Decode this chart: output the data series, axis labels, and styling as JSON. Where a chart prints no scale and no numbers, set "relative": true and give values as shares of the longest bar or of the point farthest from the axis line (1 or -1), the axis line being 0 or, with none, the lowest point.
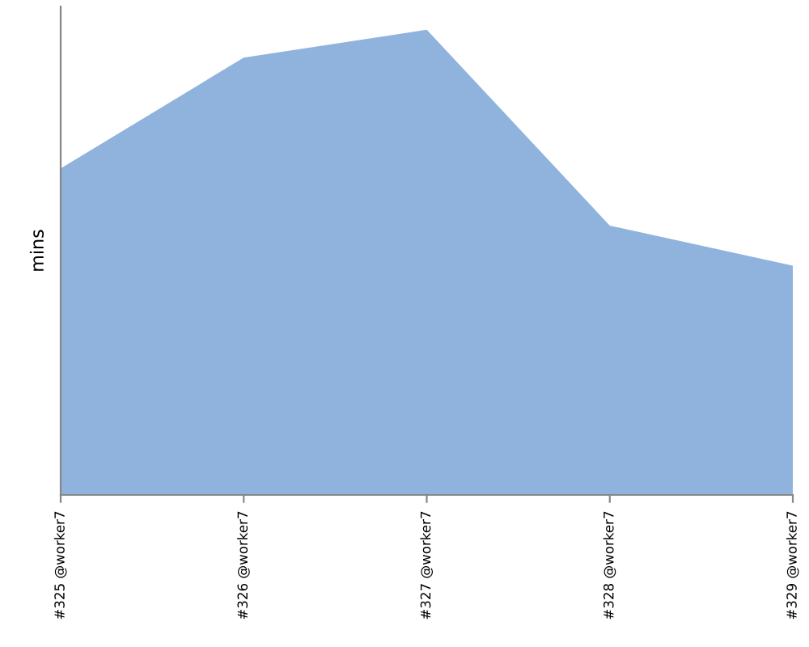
{
  "chart_data": {
    "type": "area",
    "relative": true,
    "ylabel": "mins",
    "categories": [
      "#325 @worker7",
      "#326 @worker7",
      "#327 @worker7",
      "#328 @worker7",
      "#329 @worker7"
    ],
    "series": [
      {
        "color": "#8fb3dc",
        "values": [
          0.702,
          0.94,
          1,
          0.579,
          0.493
        ]
      }
    ],
    "grid": false,
    "legend": false
  }
}
